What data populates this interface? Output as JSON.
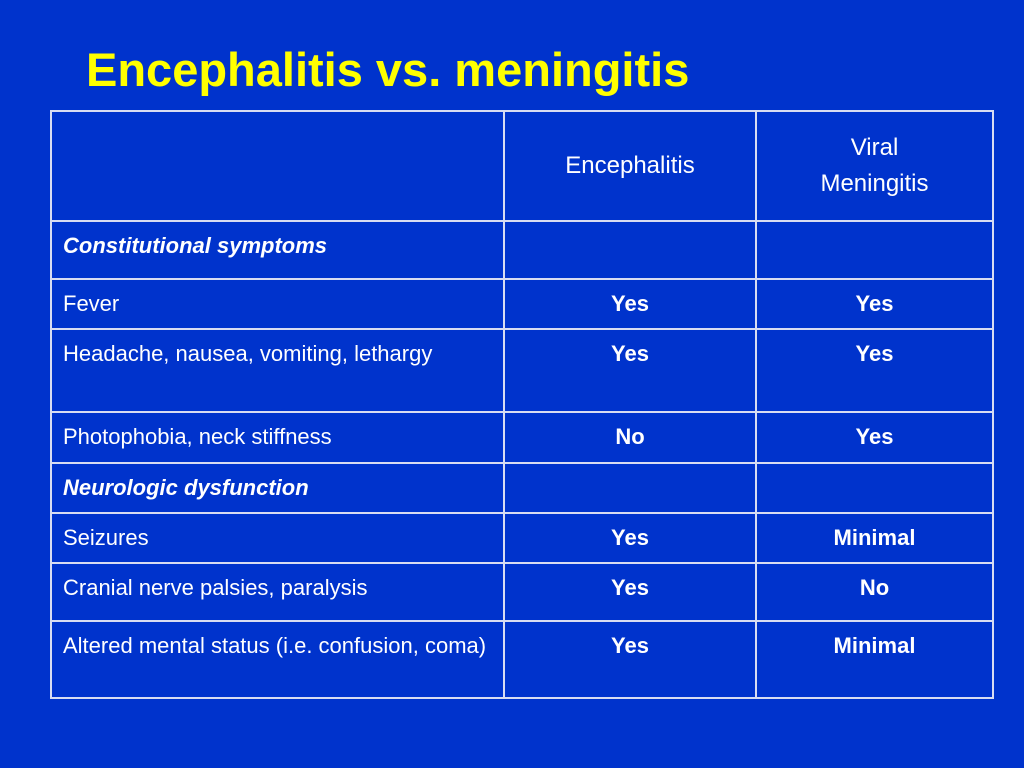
{
  "title": "Encephalitis vs. meningitis",
  "columns": [
    "",
    "Encephalitis",
    "Viral\nMeningitis"
  ],
  "rows": [
    {
      "label": "Constitutional symptoms",
      "section": true,
      "encephalitis": "",
      "meningitis": ""
    },
    {
      "label": "Fever",
      "section": false,
      "encephalitis": "Yes",
      "meningitis": "Yes"
    },
    {
      "label": "Headache, nausea, vomiting, lethargy",
      "section": false,
      "encephalitis": "Yes",
      "meningitis": "Yes"
    },
    {
      "label": "Photophobia, neck stiffness",
      "section": false,
      "encephalitis": "No",
      "meningitis": "Yes"
    },
    {
      "label": "Neurologic dysfunction",
      "section": true,
      "encephalitis": "",
      "meningitis": ""
    },
    {
      "label": "Seizures",
      "section": false,
      "encephalitis": "Yes",
      "meningitis": "Minimal"
    },
    {
      "label": "Cranial nerve palsies, paralysis",
      "section": false,
      "encephalitis": "Yes",
      "meningitis": "No"
    },
    {
      "label": "Altered mental status (i.e. confusion, coma)",
      "section": false,
      "encephalitis": "Yes",
      "meningitis": "Minimal"
    }
  ],
  "colors": {
    "background": "#0033cc",
    "title": "#ffff00",
    "text": "#ffffff",
    "border": "#d8dcf2"
  }
}
